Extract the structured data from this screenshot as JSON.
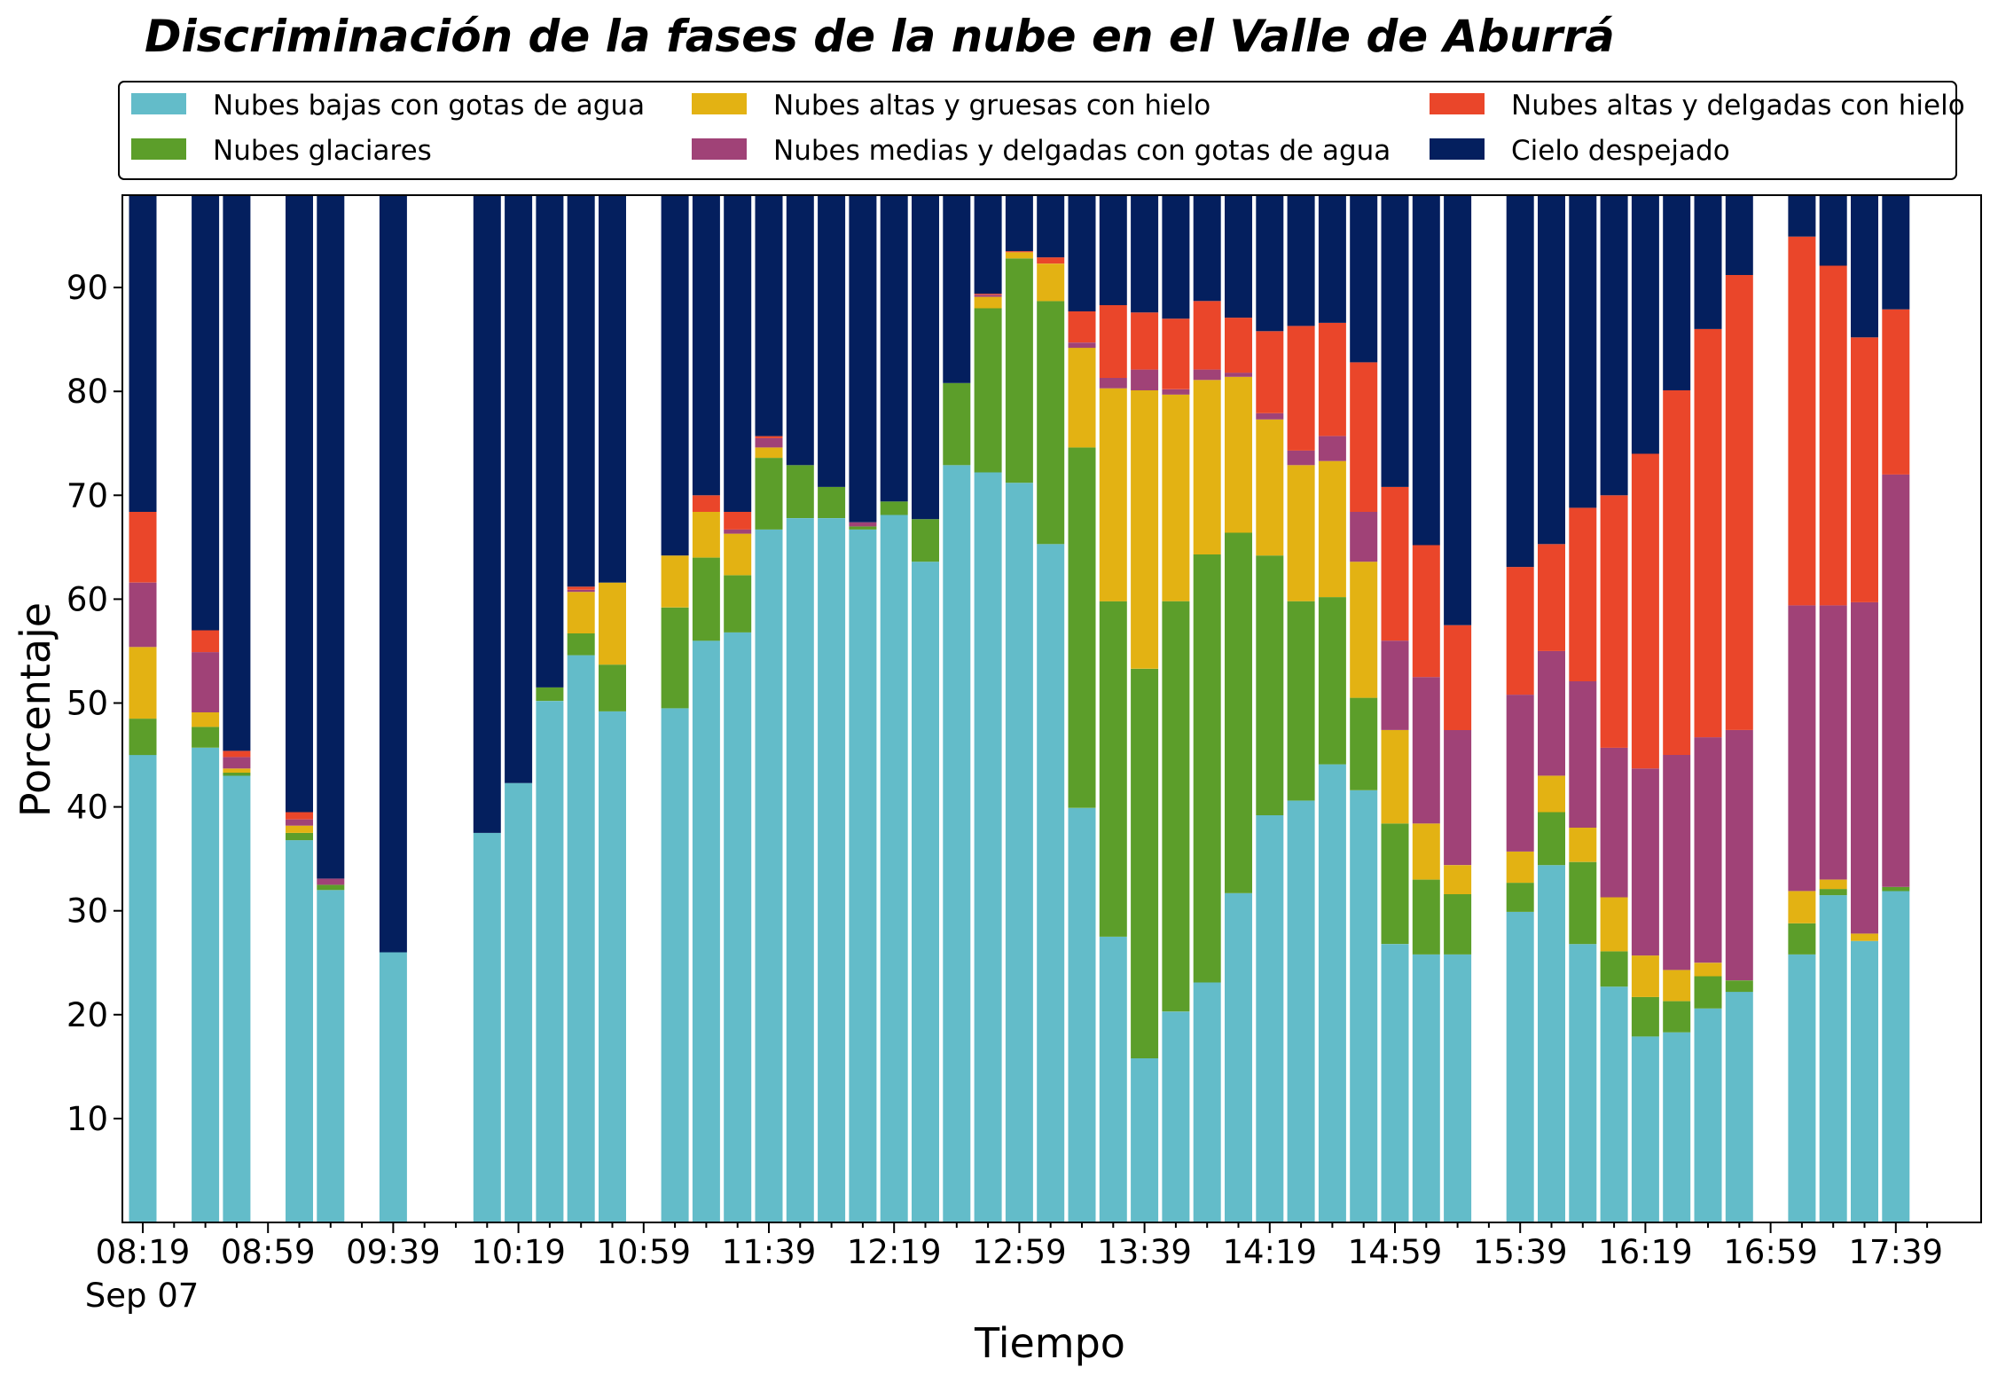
{
  "chart_data": {
    "type": "bar",
    "stacked": true,
    "title": "Discriminación de la fases de la nube en el Valle de Aburrá",
    "xlabel": "Tiempo",
    "ylabel": "Porcentaje",
    "ylim": [
      0,
      100
    ],
    "yticks": [
      "10",
      "20",
      "30",
      "40",
      "50",
      "60",
      "70",
      "80",
      "90"
    ],
    "x_tick_labels": [
      "08:19",
      "08:59",
      "09:39",
      "10:19",
      "10:59",
      "11:39",
      "12:19",
      "12:59",
      "13:39",
      "14:19",
      "14:59",
      "15:39",
      "16:19",
      "16:59",
      "17:39"
    ],
    "x_date_label": "Sep 07",
    "x_interval_minutes": 10,
    "x_start": "Sep 07 08:19",
    "legend_position": "top, outside plot, 3 columns",
    "grid": false,
    "categories": [
      "08:19",
      "08:29",
      "08:39",
      "08:49",
      "08:59",
      "09:09",
      "09:19",
      "09:29",
      "09:39",
      "09:49",
      "09:59",
      "10:09",
      "10:19",
      "10:29",
      "10:39",
      "10:49",
      "10:59",
      "11:09",
      "11:19",
      "11:29",
      "11:39",
      "11:49",
      "11:59",
      "12:09",
      "12:19",
      "12:29",
      "12:39",
      "12:49",
      "12:59",
      "13:09",
      "13:19",
      "13:29",
      "13:39",
      "13:49",
      "13:59",
      "14:09",
      "14:19",
      "14:29",
      "14:39",
      "14:49",
      "14:59",
      "15:09",
      "15:19",
      "15:29",
      "15:39",
      "15:49",
      "15:59",
      "16:09",
      "16:19",
      "16:29",
      "16:39",
      "16:49",
      "16:59",
      "17:09",
      "17:19",
      "17:29",
      "17:39"
    ],
    "series": [
      {
        "name": "Nubes bajas con gotas de agua",
        "color": "#63bcc9",
        "values": [
          45,
          null,
          45.7,
          43,
          null,
          36.8,
          32,
          null,
          26,
          null,
          null,
          37.5,
          42.3,
          50.2,
          54.6,
          49.2,
          null,
          49.5,
          56,
          56.8,
          66.7,
          67.8,
          67.8,
          66.7,
          68.1,
          63.6,
          72.9,
          72.2,
          71.2,
          65.3,
          39.9,
          27.5,
          15.8,
          20.3,
          23.1,
          31.7,
          39.2,
          40.6,
          44.1,
          41.6,
          26.8,
          25.8,
          25.8,
          null,
          29.9,
          34.4,
          26.8,
          22.7,
          17.9,
          18.3,
          20.6,
          22.2,
          null,
          25.8,
          31.5,
          27.1,
          31.9
        ]
      },
      {
        "name": "Nubes glaciares",
        "color": "#5c9e2a",
        "values": [
          3.5,
          null,
          2,
          0.3,
          null,
          0.7,
          0.5,
          null,
          0,
          null,
          null,
          0,
          0,
          1.3,
          2.1,
          4.5,
          null,
          9.7,
          8,
          5.5,
          6.9,
          5.1,
          3,
          0.3,
          1.3,
          4.1,
          7.9,
          15.8,
          21.6,
          23.4,
          34.7,
          32.3,
          37.5,
          39.5,
          41.2,
          34.7,
          25,
          19.2,
          16.1,
          8.9,
          11.6,
          7.2,
          5.8,
          null,
          2.8,
          5.1,
          7.9,
          3.4,
          3.8,
          3,
          3.1,
          1.1,
          null,
          3,
          0.6,
          0,
          0.4
        ]
      },
      {
        "name": "Nubes altas y gruesas con hielo",
        "color": "#e3b213",
        "values": [
          6.9,
          null,
          1.4,
          0.4,
          null,
          0.7,
          0,
          null,
          0,
          null,
          null,
          0,
          0,
          0,
          4,
          7.9,
          null,
          5,
          4.4,
          4,
          1,
          0,
          0,
          0,
          0,
          0,
          0,
          1.1,
          0.6,
          3.6,
          9.6,
          20.5,
          26.8,
          19.9,
          16.8,
          15,
          13.1,
          13.1,
          13.1,
          13.1,
          9,
          5.4,
          2.8,
          null,
          3,
          3.5,
          3.3,
          5.2,
          4,
          3,
          1.3,
          0,
          null,
          3.1,
          0.9,
          0.7,
          0
        ]
      },
      {
        "name": "Nubes medias y delgadas con gotas de agua",
        "color": "#a04277",
        "values": [
          6.2,
          null,
          5.8,
          1.1,
          null,
          0.6,
          0.6,
          null,
          0,
          null,
          null,
          0,
          0,
          0,
          0.2,
          0,
          null,
          0,
          0,
          0.4,
          0.9,
          0,
          0,
          0.4,
          0,
          0,
          0,
          0.2,
          0,
          0,
          0.5,
          1,
          2,
          0.5,
          1,
          0.4,
          0.6,
          1.4,
          2.4,
          4.8,
          8.6,
          14.1,
          13,
          null,
          15.1,
          12,
          14.1,
          14.4,
          18,
          20.7,
          21.7,
          24.1,
          null,
          27.5,
          26.4,
          31.9,
          39.7
        ]
      },
      {
        "name": "Nubes altas y delgadas con hielo",
        "color": "#ea462a",
        "values": [
          6.8,
          null,
          2.1,
          0.6,
          null,
          0.7,
          0,
          null,
          0,
          null,
          null,
          0,
          0,
          0,
          0.3,
          0,
          null,
          0,
          1.6,
          1.7,
          0.2,
          0,
          0,
          0,
          0,
          0,
          0,
          0.1,
          0.1,
          0.6,
          3,
          7,
          5.5,
          6.8,
          6.6,
          5.3,
          7.9,
          12,
          10.9,
          14.4,
          14.8,
          12.7,
          10.1,
          null,
          12.3,
          10.3,
          16.7,
          24.3,
          30.3,
          35.1,
          39.3,
          43.8,
          null,
          35.5,
          32.7,
          25.5,
          15.9
        ]
      },
      {
        "name": "Cielo despejado",
        "color": "#041f5e",
        "values": [
          31.6,
          null,
          43,
          54.6,
          null,
          60.5,
          67,
          null,
          74,
          null,
          null,
          62.5,
          57.7,
          48.5,
          38.8,
          38.4,
          null,
          35.8,
          30,
          31.6,
          24.3,
          27.1,
          29.2,
          32.6,
          30.6,
          32.3,
          19.2,
          10.6,
          6.5,
          7.1,
          12.3,
          11.7,
          12.4,
          13,
          11.3,
          12.9,
          14.2,
          13.7,
          13.4,
          17.2,
          29.2,
          34.8,
          42.5,
          null,
          36.9,
          34.7,
          31.2,
          30,
          26.1,
          20.2,
          14,
          8.8,
          null,
          5.1,
          8,
          14.8,
          12
        ]
      }
    ]
  }
}
